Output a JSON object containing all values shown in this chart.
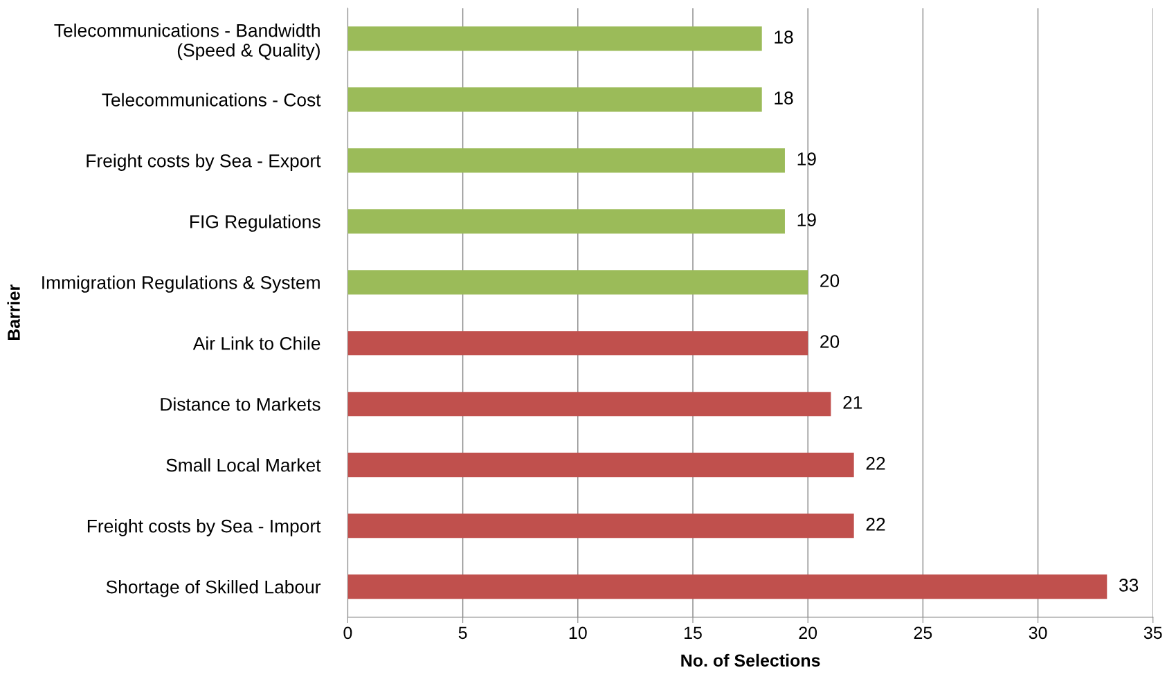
{
  "chart_data": {
    "type": "bar",
    "orientation": "horizontal",
    "xlabel": "No. of Selections",
    "ylabel": "Barrier",
    "categories": [
      "Telecommunications - Bandwidth\n(Speed & Quality)",
      "Telecommunications - Cost",
      "Freight costs by Sea - Export",
      "FIG Regulations",
      "Immigration Regulations & System",
      "Air Link to Chile",
      "Distance to Markets",
      "Small Local Market",
      "Freight costs by Sea - Import",
      "Shortage of Skilled Labour"
    ],
    "values": [
      18,
      18,
      19,
      19,
      20,
      20,
      21,
      22,
      22,
      33
    ],
    "colors": [
      "#9bbb59",
      "#9bbb59",
      "#9bbb59",
      "#9bbb59",
      "#9bbb59",
      "#c0504d",
      "#c0504d",
      "#c0504d",
      "#c0504d",
      "#c0504d"
    ],
    "xlim": [
      0,
      35
    ],
    "xticks": [
      0,
      5,
      10,
      15,
      20,
      25,
      30,
      35
    ],
    "grid": "x",
    "data_labels": true
  }
}
